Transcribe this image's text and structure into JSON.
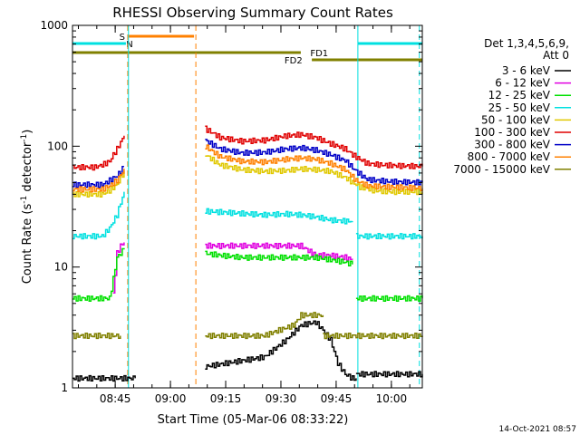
{
  "chart_data": {
    "type": "line",
    "title": "RHESSI Observing Summary Count Rates",
    "xlabel": "Start Time (05-Mar-06 08:33:22)",
    "ylabel_main": "Count Rate (s",
    "ylabel_sup1": "-1",
    "ylabel_mid": " detector",
    "ylabel_sup2": "-1",
    "ylabel_end": ")",
    "yscale": "log",
    "ylim": [
      1,
      1000
    ],
    "xlim_minutes": [
      0,
      95
    ],
    "x_ticks": [
      {
        "label": "08:45",
        "minutes": 11.6
      },
      {
        "label": "09:00",
        "minutes": 26.6
      },
      {
        "label": "09:15",
        "minutes": 41.6
      },
      {
        "label": "09:30",
        "minutes": 56.6
      },
      {
        "label": "09:45",
        "minutes": 71.6
      },
      {
        "label": "10:00",
        "minutes": 86.6
      }
    ],
    "y_ticks": [
      {
        "label": "1",
        "value": 1
      },
      {
        "label": "10",
        "value": 10
      },
      {
        "label": "100",
        "value": 100
      },
      {
        "label": "1000",
        "value": 1000
      }
    ],
    "legend": {
      "header_line1": "Det 1,3,4,5,6,9,",
      "header_line2": "Att 0",
      "position": "right"
    },
    "series": [
      {
        "name": "3 - 6 keV",
        "color": "#000000",
        "segments": [
          {
            "x": [
              0,
              17
            ],
            "y": [
              1.2,
              1.2
            ]
          },
          {
            "x": [
              36,
              52,
              58,
              62,
              66,
              68,
              70,
              72,
              74,
              76,
              77
            ],
            "y": [
              1.5,
              1.8,
              2.5,
              3.3,
              3.5,
              3.0,
              2.5,
              1.6,
              1.3,
              1.2,
              1.2
            ]
          },
          {
            "x": [
              77,
              95
            ],
            "y": [
              1.3,
              1.3
            ]
          }
        ]
      },
      {
        "name": "6 - 12 keV",
        "color": "#e000e0",
        "segments": [
          {
            "x": [
              11,
              12,
              13,
              14
            ],
            "y": [
              6,
              13,
              15,
              16
            ]
          },
          {
            "x": [
              36,
              42,
              50,
              57,
              62,
              66,
              70,
              74,
              76
            ],
            "y": [
              15,
              15,
              15,
              15,
              15,
              12.5,
              12.5,
              12,
              11.5
            ]
          }
        ]
      },
      {
        "name": "12 - 25 keV",
        "color": "#00e000",
        "segments": [
          {
            "x": [
              0,
              10,
              11,
              12,
              13,
              14
            ],
            "y": [
              5.5,
              5.5,
              8,
              12,
              13,
              14
            ]
          },
          {
            "x": [
              36,
              40,
              46,
              54,
              60,
              66,
              70,
              74,
              76
            ],
            "y": [
              13,
              12.5,
              12,
              12,
              12,
              12,
              11.5,
              11,
              10.5
            ]
          },
          {
            "x": [
              77,
              95
            ],
            "y": [
              5.5,
              5.5
            ]
          }
        ]
      },
      {
        "name": "25 - 50 keV",
        "color": "#00e0e0",
        "segments": [
          {
            "x": [
              0,
              8,
              10,
              12,
              13,
              14
            ],
            "y": [
              18,
              18,
              21,
              27,
              34,
              42
            ]
          },
          {
            "x": [
              36,
              44,
              52,
              58,
              62,
              66,
              70,
              74,
              76
            ],
            "y": [
              29,
              28,
              27,
              27.5,
              27,
              26,
              24.5,
              24,
              24
            ]
          },
          {
            "x": [
              77,
              95
            ],
            "y": [
              18,
              18
            ]
          }
        ]
      },
      {
        "name": "50 - 100 keV",
        "color": "#e0c800",
        "segments": [
          {
            "x": [
              0,
              8,
              10,
              12,
              13,
              14
            ],
            "y": [
              40,
              40,
              43,
              48,
              55,
              62
            ]
          },
          {
            "x": [
              36,
              40,
              46,
              52,
              58,
              62,
              66,
              70,
              74,
              78,
              82,
              86,
              95
            ],
            "y": [
              85,
              70,
              64,
              62,
              63,
              65,
              64,
              62,
              55,
              46,
              43,
              42,
              42
            ]
          }
        ]
      },
      {
        "name": "100 - 300 keV",
        "color": "#e00000",
        "segments": [
          {
            "x": [
              0,
              6,
              8,
              10,
              11,
              12,
              13,
              14
            ],
            "y": [
              67,
              67,
              70,
              75,
              85,
              95,
              108,
              122
            ]
          },
          {
            "x": [
              36,
              40,
              46,
              52,
              58,
              62,
              66,
              70,
              72,
              74,
              76,
              78,
              80,
              84,
              88,
              95
            ],
            "y": [
              140,
              118,
              110,
              112,
              122,
              125,
              118,
              105,
              100,
              95,
              85,
              78,
              72,
              70,
              69,
              68
            ]
          }
        ]
      },
      {
        "name": "300 - 800 keV",
        "color": "#0000c8",
        "segments": [
          {
            "x": [
              0,
              8,
              10,
              12,
              13,
              14
            ],
            "y": [
              48,
              48,
              52,
              57,
              62,
              68
            ]
          },
          {
            "x": [
              36,
              40,
              46,
              52,
              58,
              62,
              66,
              70,
              74,
              77,
              80,
              86,
              95
            ],
            "y": [
              112,
              95,
              88,
              89,
              95,
              97,
              93,
              85,
              76,
              62,
              53,
              51,
              50
            ]
          }
        ]
      },
      {
        "name": "800 - 7000 keV",
        "color": "#ff8000",
        "segments": [
          {
            "x": [
              0,
              8,
              10,
              12,
              13,
              14
            ],
            "y": [
              44,
              44,
              47,
              52,
              58,
              65
            ]
          },
          {
            "x": [
              36,
              40,
              46,
              52,
              58,
              62,
              66,
              70,
              74,
              77,
              80,
              86,
              95
            ],
            "y": [
              100,
              82,
              75,
              74,
              78,
              80,
              78,
              72,
              64,
              52,
              47,
              46,
              45
            ]
          }
        ]
      },
      {
        "name": "7000 - 15000 keV",
        "color": "#808000",
        "segments": [
          {
            "x": [
              0,
              13
            ],
            "y": [
              2.7,
              2.7
            ]
          },
          {
            "x": [
              36,
              52,
              56,
              60,
              62,
              68
            ],
            "y": [
              2.7,
              2.7,
              3.0,
              3.3,
              4.0,
              4.0
            ]
          },
          {
            "x": [
              68,
              95
            ],
            "y": [
              2.7,
              2.7
            ]
          }
        ]
      }
    ],
    "flag_bars": [
      {
        "label": "S",
        "color": "#ff8000",
        "minutes": [
          15,
          33
        ],
        "label_minutes": 13.5,
        "level": 1
      },
      {
        "label": "N",
        "color": "#00e0e0",
        "minutes": [
          0,
          14.5
        ],
        "label_minutes": 15.5,
        "level": 2
      },
      {
        "label": "N",
        "color": "#00e0e0",
        "minutes": [
          77.5,
          95
        ],
        "label_minutes": null,
        "level": 2
      },
      {
        "label": "FD1",
        "color": "#808000",
        "minutes": [
          0,
          62
        ],
        "label_minutes": 67,
        "level": 3
      },
      {
        "label": "FD2",
        "color": "#808000",
        "minutes": [
          65,
          95
        ],
        "label_minutes": 60,
        "level": 4
      }
    ],
    "vlines": [
      {
        "minutes": 15,
        "color": "#ff8000",
        "dashed": true
      },
      {
        "minutes": 33.5,
        "color": "#ff8000",
        "dashed": true
      },
      {
        "minutes": 15.2,
        "color": "#00e0e0",
        "dashed": false
      },
      {
        "minutes": 77.5,
        "color": "#00e0e0",
        "dashed": false
      },
      {
        "minutes": 94.2,
        "color": "#00e0e0",
        "dashed": true
      }
    ]
  },
  "footer": {
    "date_stamp": "14-Oct-2021 08:57"
  }
}
